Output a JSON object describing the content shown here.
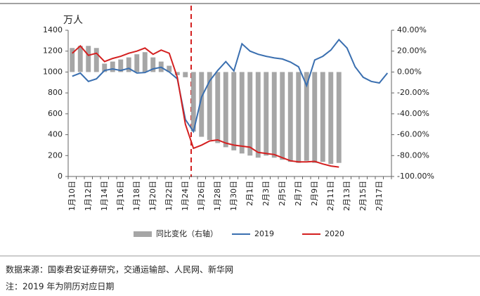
{
  "chart_data": {
    "type": "combo",
    "y_unit_label": "万人",
    "categories": [
      "1月10日",
      null,
      "1月12日",
      null,
      "1月14日",
      null,
      "1月16日",
      null,
      "1月18日",
      null,
      "1月20日",
      null,
      "1月22日",
      null,
      "1月24日",
      null,
      "1月26日",
      null,
      "1月28日",
      null,
      "1月30日",
      null,
      "2月1日",
      null,
      "2月3日",
      null,
      "2月5日",
      null,
      "2月7日",
      null,
      "2月9日",
      null,
      "2月11日",
      null,
      "2月13日",
      null,
      "2月15日",
      null,
      "2月17日",
      null
    ],
    "series": [
      {
        "name": "同比变化（右轴）",
        "type": "bar",
        "axis": "y2",
        "color": "#a6a6a6",
        "values": [
          23,
          25,
          25,
          23,
          8,
          10,
          12,
          14,
          17,
          19,
          14,
          10,
          6,
          -3,
          -5,
          -57,
          -62,
          -65,
          -68,
          -72,
          -75,
          -78,
          -80,
          -82,
          -80,
          -82,
          -84,
          -86,
          -87,
          -85,
          -87,
          -86,
          -88,
          -87,
          null,
          null,
          null,
          null,
          null,
          null
        ]
      },
      {
        "name": "2019",
        "type": "line",
        "color": "#3a6fb0",
        "values": [
          960,
          990,
          910,
          935,
          1015,
          1030,
          1015,
          1035,
          990,
          995,
          1030,
          1045,
          1000,
          935,
          545,
          430,
          760,
          915,
          1015,
          1100,
          1010,
          1270,
          1200,
          1170,
          1150,
          1135,
          1125,
          1095,
          1050,
          870,
          1115,
          1150,
          1210,
          1310,
          1230,
          1050,
          950,
          910,
          895,
          990
        ]
      },
      {
        "name": "2020",
        "type": "line",
        "color": "#d42020",
        "values": [
          1180,
          1250,
          1160,
          1180,
          1100,
          1130,
          1150,
          1180,
          1200,
          1230,
          1170,
          1210,
          1180,
          950,
          500,
          270,
          300,
          340,
          350,
          320,
          300,
          290,
          280,
          230,
          220,
          210,
          180,
          150,
          140,
          140,
          145,
          120,
          100,
          90,
          null,
          null,
          null,
          null,
          null,
          null
        ]
      }
    ],
    "ylim": [
      0,
      1400
    ],
    "yticks": [
      0,
      200,
      400,
      600,
      800,
      1000,
      1200,
      1400
    ],
    "y2lim": [
      -100,
      40
    ],
    "y2ticks": [
      {
        "value": 40,
        "label": "40.00%"
      },
      {
        "value": 20,
        "label": "20.00%"
      },
      {
        "value": 0,
        "label": "0.00%"
      },
      {
        "value": -20,
        "label": "-20.00%"
      },
      {
        "value": -40,
        "label": "-40.00%"
      },
      {
        "value": -60,
        "label": "-60.00%"
      },
      {
        "value": -80,
        "label": "-80.00%"
      },
      {
        "value": -100,
        "label": "-100.00%"
      }
    ],
    "grid": false,
    "legend": "bottom"
  },
  "notes": [
    "数据来源：国泰君安证券研究，交通运输部、人民网、新华网",
    "注：2019 年为阴历对应日期"
  ]
}
